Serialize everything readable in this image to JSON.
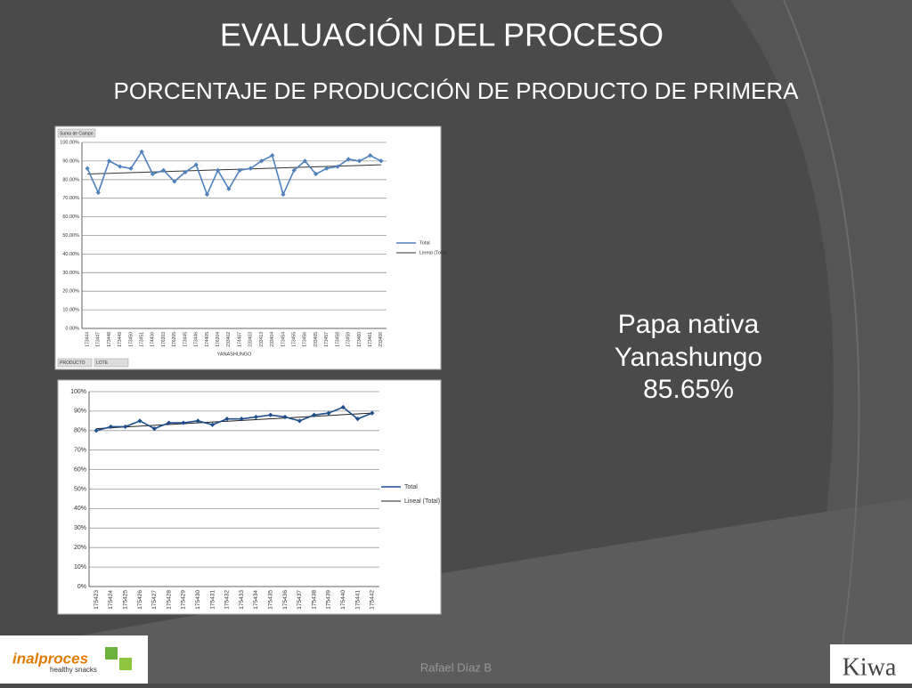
{
  "title": "EVALUACIÓN DEL PROCESO",
  "subtitle": "PORCENTAJE DE PRODUCCIÓN DE PRODUCTO DE PRIMERA",
  "highlight": {
    "line1": "Papa nativa",
    "line2": "Yanashungo",
    "value": "85.65%"
  },
  "footer": "Rafael Díaz B",
  "logos": {
    "left": "inalproces",
    "left_tagline": "healthy snacks",
    "right": "Kiwa"
  },
  "chart_data": [
    {
      "type": "line",
      "field_label": "Suma de Campo",
      "x_label": "YANASHUNGO",
      "filters": [
        "PRODUCTO",
        "LOTE"
      ],
      "categories": [
        "173444",
        "173447",
        "173448",
        "173449",
        "173450",
        "173451",
        "174406",
        "176203",
        "176205",
        "173445",
        "173446",
        "174405",
        "176204",
        "233402",
        "174407",
        "233403",
        "233413",
        "233404",
        "173454",
        "173455",
        "173456",
        "233405",
        "173457",
        "173458",
        "173459",
        "173460",
        "173461",
        "233406"
      ],
      "series": [
        {
          "name": "Total",
          "color": "#4f81bd",
          "values": [
            86,
            73,
            90,
            87,
            86,
            95,
            83,
            85,
            79,
            84,
            88,
            72,
            85,
            75,
            85,
            86,
            90,
            93,
            72,
            85,
            90,
            83,
            86,
            87,
            91,
            90,
            93,
            90
          ]
        }
      ],
      "trend": {
        "name": "Lineal (Total)",
        "color": "#333333",
        "start": 83,
        "end": 88
      },
      "ylim": [
        0,
        100
      ],
      "yticks": [
        {
          "value": 0,
          "label": "0.00%"
        },
        {
          "value": 10,
          "label": "10.00%"
        },
        {
          "value": 20,
          "label": "20.00%"
        },
        {
          "value": 30,
          "label": "30.00%"
        },
        {
          "value": 40,
          "label": "40.00%"
        },
        {
          "value": 50,
          "label": "50.00%"
        },
        {
          "value": 60,
          "label": "60.00%"
        },
        {
          "value": 70,
          "label": "70.00%"
        },
        {
          "value": 80,
          "label": "80.00%"
        },
        {
          "value": 90,
          "label": "90.00%"
        },
        {
          "value": 100,
          "label": "100.00%"
        }
      ],
      "grid": true
    },
    {
      "type": "line",
      "categories": [
        "175423",
        "175424",
        "175425",
        "175426",
        "175427",
        "175428",
        "175429",
        "175430",
        "175431",
        "175432",
        "175433",
        "175434",
        "175435",
        "175436",
        "175437",
        "175438",
        "175439",
        "175440",
        "175441",
        "175442"
      ],
      "series": [
        {
          "name": "Total",
          "color": "#1f4e8c",
          "values": [
            80,
            82,
            82,
            85,
            81,
            84,
            84,
            85,
            83,
            86,
            86,
            87,
            88,
            87,
            85,
            88,
            89,
            92,
            86,
            89
          ]
        }
      ],
      "trend": {
        "name": "Lineal (Total)",
        "color": "#222222",
        "start": 81,
        "end": 89
      },
      "ylim": [
        0,
        100
      ],
      "yticks": [
        {
          "value": 0,
          "label": "0%"
        },
        {
          "value": 10,
          "label": "10%"
        },
        {
          "value": 20,
          "label": "20%"
        },
        {
          "value": 30,
          "label": "30%"
        },
        {
          "value": 40,
          "label": "40%"
        },
        {
          "value": 50,
          "label": "50%"
        },
        {
          "value": 60,
          "label": "60%"
        },
        {
          "value": 70,
          "label": "70%"
        },
        {
          "value": 80,
          "label": "80%"
        },
        {
          "value": 90,
          "label": "90%"
        },
        {
          "value": 100,
          "label": "100%"
        }
      ],
      "grid": true
    }
  ]
}
